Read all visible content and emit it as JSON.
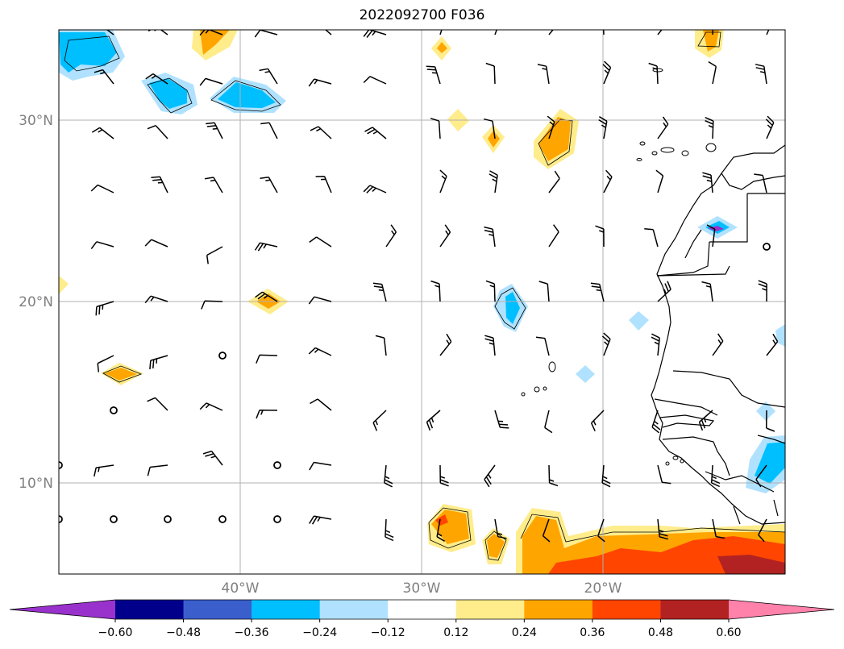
{
  "title": "2022092700 F036",
  "axes": {
    "latitude_labels": [
      "30°N",
      "20°N",
      "10°N"
    ],
    "latitude_values": [
      30,
      20,
      10
    ],
    "longitude_labels": [
      "40°W",
      "30°W",
      "20°W"
    ],
    "longitude_values": [
      -40,
      -30,
      -20
    ],
    "extent": {
      "lon_min": -50,
      "lon_max": -10,
      "lat_min": 5,
      "lat_max": 35
    },
    "grid": true
  },
  "colorbar": {
    "orientation": "horizontal",
    "extend": "both",
    "tick_labels": [
      "−0.60",
      "−0.48",
      "−0.36",
      "−0.24",
      "−0.12",
      "0.12",
      "0.24",
      "0.36",
      "0.48",
      "0.60"
    ],
    "tick_values": [
      -0.6,
      -0.48,
      -0.36,
      -0.24,
      -0.12,
      0.12,
      0.24,
      0.36,
      0.48,
      0.6
    ],
    "colors": [
      "#9932cc",
      "#00008b",
      "#3a5fcd",
      "#00bfff",
      "#b0e2ff",
      "#ffffff",
      "#ffec8b",
      "#ffa500",
      "#ff4500",
      "#b22222",
      "#ff82ab"
    ]
  },
  "colors": {
    "frame": "#000000",
    "gridline": "#b0b0b0",
    "coastline": "#000000",
    "wind_barb": "#000000"
  },
  "layers": [
    "shaded anomaly field",
    "wind barbs",
    "coastlines",
    "country borders",
    "lat/lon grid"
  ]
}
